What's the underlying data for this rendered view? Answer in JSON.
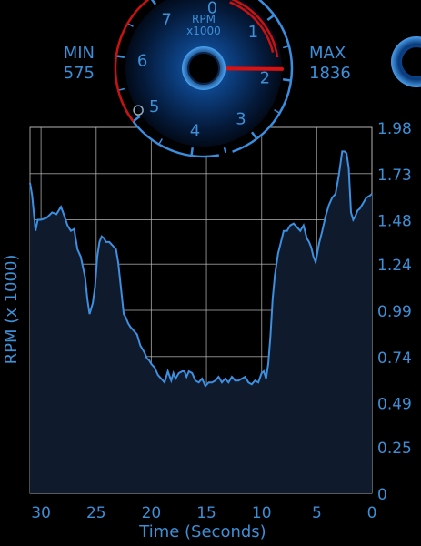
{
  "gauge": {
    "title": "RPM",
    "subtitle": "x1000",
    "scale_labels": [
      "0",
      "1",
      "2",
      "3",
      "4",
      "5",
      "6",
      "7"
    ],
    "needle_value": 1.836,
    "min_marker_value": 0.575
  },
  "min": {
    "label": "MIN",
    "value": "575"
  },
  "max": {
    "label": "MAX",
    "value": "1836"
  },
  "chart_data": {
    "type": "area",
    "xlabel": "Time (Seconds)",
    "ylabel": "RPM (x 1000)",
    "xlim": [
      31,
      0
    ],
    "ylim": [
      0,
      1.98
    ],
    "x_ticks": [
      "30",
      "25",
      "20",
      "15",
      "10",
      "5",
      "0"
    ],
    "y_ticks": [
      "1.98",
      "1.73",
      "1.48",
      "1.24",
      "0.99",
      "0.74",
      "0.49",
      "0.25",
      "0"
    ],
    "grid": true,
    "x": [
      31,
      30.8,
      30.5,
      30.3,
      30,
      29.5,
      29,
      28.6,
      28.2,
      28,
      27.6,
      27.3,
      27,
      26.7,
      26.4,
      26,
      25.8,
      25.6,
      25.3,
      25.1,
      24.9,
      24.7,
      24.5,
      24.3,
      24.1,
      23.8,
      23.5,
      23.2,
      23,
      22.7,
      22.5,
      22.3,
      22.1,
      21.9,
      21.6,
      21.3,
      21,
      20.8,
      20.6,
      20.4,
      20.2,
      20,
      19.7,
      19.4,
      19.1,
      18.8,
      18.5,
      18.2,
      18,
      17.8,
      17.5,
      17.2,
      17,
      16.8,
      16.6,
      16.3,
      16,
      15.7,
      15.4,
      15.1,
      14.8,
      14.5,
      14.2,
      13.9,
      13.6,
      13.3,
      13,
      12.7,
      12.4,
      12.1,
      11.8,
      11.5,
      11.2,
      10.9,
      10.6,
      10.3,
      10,
      9.8,
      9.6,
      9.4,
      9.2,
      9,
      8.8,
      8.5,
      8.2,
      8,
      7.7,
      7.4,
      7.1,
      6.8,
      6.5,
      6.2,
      5.9,
      5.7,
      5.5,
      5.3,
      5.1,
      4.8,
      4.5,
      4.2,
      3.9,
      3.6,
      3.3,
      3,
      2.7,
      2.5,
      2.3,
      2.1,
      1.9,
      1.7,
      1.5,
      1.3,
      1.1,
      0.9,
      0.7,
      0.5,
      0.2,
      0
    ],
    "values": [
      1.68,
      1.61,
      1.42,
      1.48,
      1.48,
      1.49,
      1.52,
      1.51,
      1.55,
      1.52,
      1.45,
      1.42,
      1.43,
      1.32,
      1.28,
      1.17,
      1.05,
      0.97,
      1.03,
      1.12,
      1.28,
      1.36,
      1.39,
      1.38,
      1.36,
      1.36,
      1.34,
      1.32,
      1.25,
      1.08,
      0.97,
      0.95,
      0.92,
      0.9,
      0.88,
      0.86,
      0.8,
      0.78,
      0.76,
      0.73,
      0.72,
      0.7,
      0.68,
      0.64,
      0.62,
      0.6,
      0.66,
      0.61,
      0.65,
      0.62,
      0.65,
      0.66,
      0.66,
      0.63,
      0.66,
      0.65,
      0.61,
      0.6,
      0.62,
      0.58,
      0.6,
      0.6,
      0.61,
      0.63,
      0.6,
      0.62,
      0.6,
      0.63,
      0.61,
      0.61,
      0.62,
      0.63,
      0.6,
      0.59,
      0.61,
      0.6,
      0.65,
      0.66,
      0.62,
      0.7,
      0.85,
      1.05,
      1.18,
      1.3,
      1.37,
      1.42,
      1.42,
      1.45,
      1.46,
      1.44,
      1.42,
      1.45,
      1.38,
      1.36,
      1.33,
      1.28,
      1.25,
      1.35,
      1.42,
      1.5,
      1.56,
      1.6,
      1.62,
      1.72,
      1.85,
      1.85,
      1.84,
      1.76,
      1.52,
      1.48,
      1.5,
      1.53,
      1.54,
      1.56,
      1.58,
      1.6,
      1.61,
      1.62
    ],
    "colors": {
      "line": "#3d8fe0",
      "fill": "#0f1a2c",
      "grid": "#bfbfbf",
      "text": "#3d8fd6",
      "gauge_accent": "#cc1111"
    }
  }
}
